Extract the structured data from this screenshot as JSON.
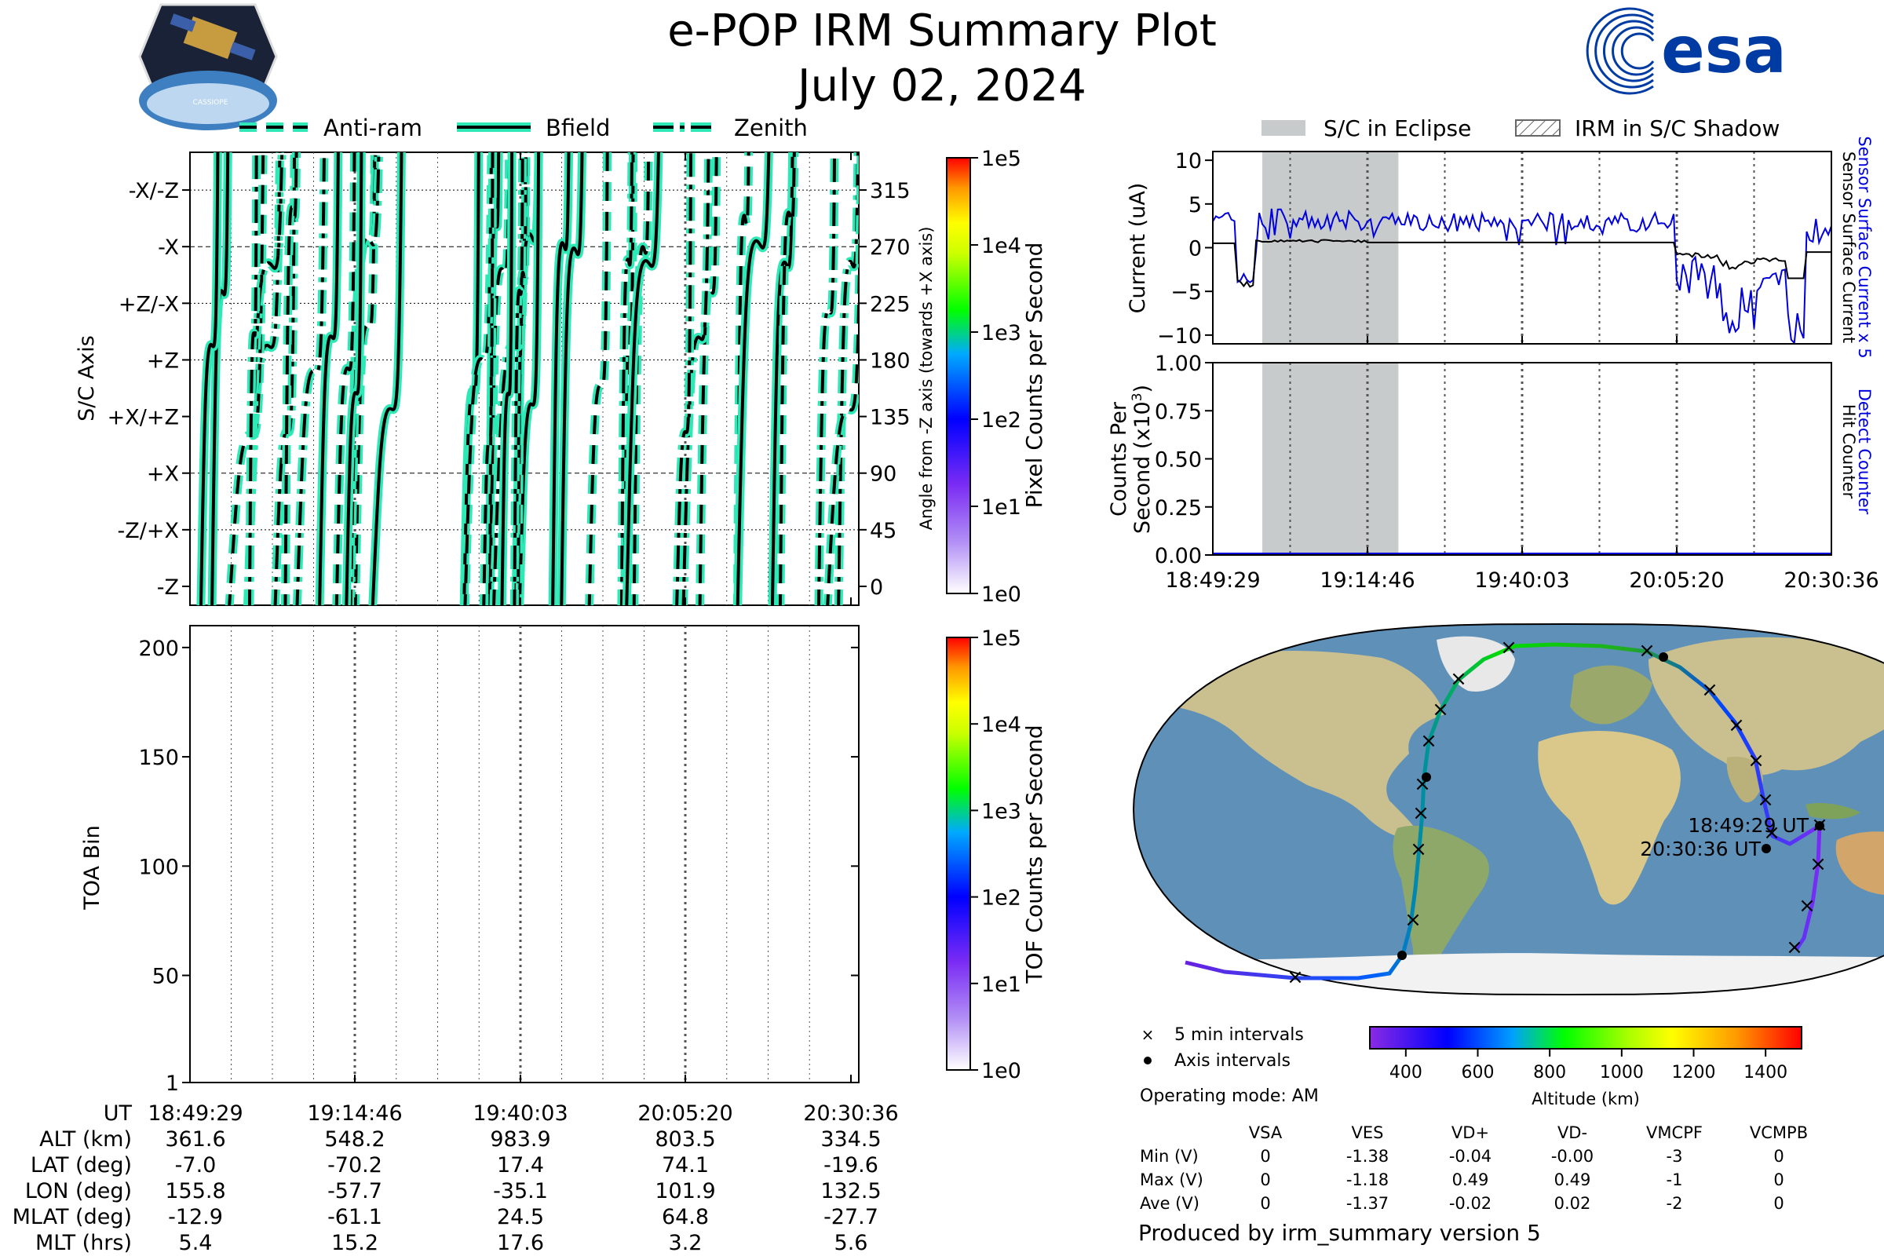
{
  "header": {
    "title": "e-POP IRM Summary Plot",
    "date": "July 02, 2024",
    "mission_logo_text": "CASSIOPE",
    "agency_logo_text": "esa"
  },
  "legends": {
    "direction": [
      {
        "label": "Anti-ram",
        "style": "dashed"
      },
      {
        "label": "Bfield",
        "style": "solid"
      },
      {
        "label": "Zenith",
        "style": "dashdot"
      }
    ],
    "shading": [
      {
        "label": "S/C in Eclipse",
        "style": "gray-fill"
      },
      {
        "label": "IRM in S/C Shadow",
        "style": "hatched"
      }
    ],
    "map": [
      {
        "label": "5 min intervals",
        "marker": "x"
      },
      {
        "label": "Axis intervals",
        "marker": "dot"
      }
    ]
  },
  "time_axis": {
    "ticks": [
      "18:49:29",
      "19:14:46",
      "19:40:03",
      "20:05:20",
      "20:30:36"
    ]
  },
  "ephemeris": {
    "row_labels": [
      "UT",
      "ALT (km)",
      "LAT (deg)",
      "LON (deg)",
      "MLAT (deg)",
      "MLT (hrs)"
    ],
    "columns": [
      {
        "ut": "18:49:29",
        "alt": "361.6",
        "lat": "-7.0",
        "lon": "155.8",
        "mlat": "-12.9",
        "mlt": "5.4"
      },
      {
        "ut": "19:14:46",
        "alt": "548.2",
        "lat": "-70.2",
        "lon": "-57.7",
        "mlat": "-61.1",
        "mlt": "15.2"
      },
      {
        "ut": "19:40:03",
        "alt": "983.9",
        "lat": "17.4",
        "lon": "-35.1",
        "mlat": "24.5",
        "mlt": "17.6"
      },
      {
        "ut": "20:05:20",
        "alt": "803.5",
        "lat": "74.1",
        "lon": "101.9",
        "mlat": "64.8",
        "mlt": "3.2"
      },
      {
        "ut": "20:30:36",
        "alt": "334.5",
        "lat": "-19.6",
        "lon": "132.5",
        "mlat": "-27.7",
        "mlt": "5.6"
      }
    ]
  },
  "colorbars": {
    "pixel": {
      "label": "Pixel Counts per Second",
      "ticks": [
        "1e0",
        "1e1",
        "1e2",
        "1e3",
        "1e4",
        "1e5"
      ]
    },
    "tof": {
      "label": "TOF Counts per Second",
      "ticks": [
        "1e0",
        "1e1",
        "1e2",
        "1e3",
        "1e4",
        "1e5"
      ]
    },
    "altitude": {
      "label": "Altitude (km)",
      "ticks": [
        "400",
        "600",
        "800",
        "1000",
        "1200",
        "1400"
      ],
      "range": [
        300,
        1500
      ]
    }
  },
  "voltages": {
    "operating_mode": "Operating mode: AM",
    "headers": [
      "VSA",
      "VES",
      "VD+",
      "VD-",
      "VMCPF",
      "VCMPB"
    ],
    "rows": [
      {
        "label": "Min (V)",
        "values": [
          "0",
          "-1.38",
          "-0.04",
          "-0.00",
          "-3",
          "0"
        ]
      },
      {
        "label": "Max (V)",
        "values": [
          "0",
          "-1.18",
          "0.49",
          "0.49",
          "-1",
          "0"
        ]
      },
      {
        "label": "Ave (V)",
        "values": [
          "0",
          "-1.37",
          "-0.02",
          "0.02",
          "-2",
          "0"
        ]
      }
    ]
  },
  "map": {
    "start_label": "18:49:29 UT",
    "end_label": "20:30:36 UT"
  },
  "footer": {
    "produced_by": "Produced by irm_summary version 5"
  },
  "colors": {
    "fov_line_fill": "#2ee8b6",
    "current_blue": "#0000dd",
    "eclipse_gray": "#c8cbcb",
    "ocean": "#5f91b8",
    "land": "#c9bf8f"
  },
  "chart_data": [
    {
      "type": "line",
      "id": "sc-axis",
      "ylabel": "S/C Axis",
      "y2label": "Angle from -Z axis (towards +X axis)",
      "yticks_left": [
        "-Z",
        "-Z/+X",
        "+X",
        "+X/+Z",
        "+Z",
        "+Z/-X",
        "-X",
        "-X/-Z"
      ],
      "yticks_right": [
        "0",
        "45",
        "90",
        "135",
        "180",
        "225",
        "270",
        "315"
      ],
      "ylim": [
        -15,
        345
      ],
      "series": [
        {
          "name": "Bfield",
          "style": "solid"
        },
        {
          "name": "Anti-ram",
          "style": "dashed"
        },
        {
          "name": "Zenith",
          "style": "dashdot"
        }
      ]
    },
    {
      "type": "heatmap",
      "id": "toa",
      "ylabel": "TOA Bin",
      "yticks": [
        "1",
        "50",
        "100",
        "150",
        "200"
      ],
      "ylim": [
        1,
        210
      ]
    },
    {
      "type": "line",
      "id": "current",
      "ylabel": "Current (uA)",
      "ylim": [
        -11,
        11
      ],
      "yticks": [
        "10",
        "5",
        "0",
        "−5",
        "−10"
      ],
      "y2label_blue": "Sensor Surface Current x 5",
      "y2label_black": "Sensor Surface Current",
      "series": [
        {
          "name": "Sensor Surface Current x 5",
          "color": "#0000dd"
        },
        {
          "name": "Sensor Surface Current",
          "color": "#000000"
        }
      ],
      "eclipse": [
        0.08,
        0.3
      ]
    },
    {
      "type": "line",
      "id": "counts",
      "ylabel_line1": "Counts Per",
      "ylabel_line2": "Second (x10",
      "ylabel_sup": "3",
      "ylabel_close": ")",
      "yticks": [
        "1.00",
        "0.75",
        "0.50",
        "0.25",
        "0.00"
      ],
      "ylim": [
        0,
        1
      ],
      "y2label_blue": "Detect Counter",
      "y2label_black": "Hit Counter",
      "series": [
        {
          "name": "Detect Counter",
          "values": [
            0,
            0,
            0,
            0,
            0
          ]
        },
        {
          "name": "Hit Counter",
          "values": [
            0,
            0,
            0,
            0,
            0
          ]
        }
      ]
    }
  ]
}
